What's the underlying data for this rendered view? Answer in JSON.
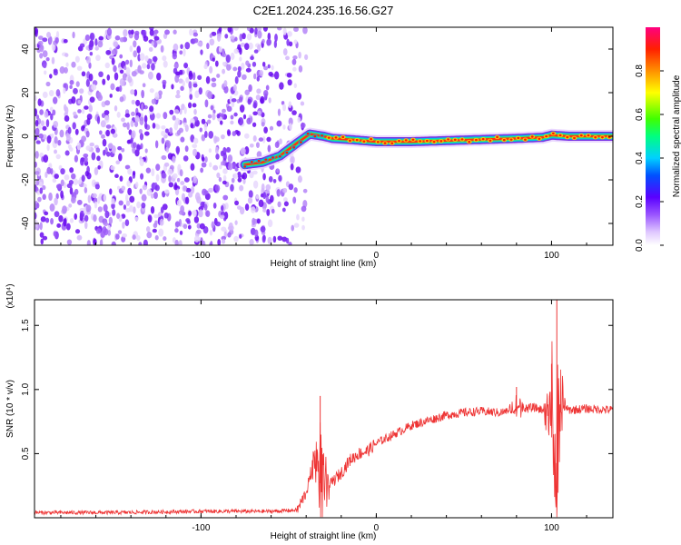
{
  "title": "C2E1.2024.235.16.56.G27",
  "chart_data": [
    {
      "type": "heatmap",
      "xlabel": "Height of straight line (km)",
      "ylabel": "Frequency (Hz)",
      "xlim": [
        -195,
        135
      ],
      "ylim": [
        -50,
        50
      ],
      "xticks": [
        -100,
        0,
        100
      ],
      "xtick_labels": [
        "-100",
        "0",
        "100"
      ],
      "yticks": [
        -40,
        -20,
        0,
        20,
        40
      ],
      "ytick_labels": [
        "-40",
        "-20",
        "0",
        "20",
        "40"
      ],
      "noise_region_x": [
        -195,
        -50
      ],
      "signal_track": {
        "x": [
          -75,
          -65,
          -55,
          -45,
          -38,
          -30,
          -25,
          -15,
          0,
          20,
          40,
          60,
          80,
          95,
          100,
          110,
          135
        ],
        "y": [
          -13,
          -12,
          -9,
          -3,
          1,
          0,
          -1,
          -1.5,
          -2.5,
          -2.5,
          -2,
          -1.5,
          -1,
          -0.5,
          0.5,
          0,
          0
        ]
      },
      "colorbar": {
        "label": "Normalized spectral amplitude",
        "range": [
          0,
          1
        ],
        "ticks": [
          0.0,
          0.2,
          0.4,
          0.6,
          0.8
        ],
        "tick_labels": [
          "0.0",
          "0.2",
          "0.4",
          "0.6",
          "0.8"
        ]
      }
    },
    {
      "type": "line",
      "xlabel": "Height of straight line (km)",
      "ylabel": "SNR (10 * v/v)",
      "scale_label": "(x10⁴)",
      "xlim": [
        -195,
        135
      ],
      "ylim": [
        0,
        1.7
      ],
      "xticks": [
        -100,
        0,
        100
      ],
      "xtick_labels": [
        "-100",
        "0",
        "100"
      ],
      "yticks": [
        0.5,
        1.0,
        1.5
      ],
      "ytick_labels": [
        "0.5",
        "1.0",
        "1.5"
      ],
      "series": [
        {
          "color": "#ee3333",
          "x": [
            -195,
            -150,
            -100,
            -60,
            -45,
            -40,
            -35,
            -30,
            -25,
            -20,
            -15,
            -10,
            -5,
            0,
            10,
            20,
            30,
            40,
            50,
            60,
            70,
            80,
            90,
            95,
            100,
            103,
            105,
            110,
            120,
            135
          ],
          "y": [
            0.04,
            0.04,
            0.05,
            0.05,
            0.06,
            0.2,
            0.45,
            0.15,
            0.28,
            0.35,
            0.45,
            0.5,
            0.52,
            0.58,
            0.65,
            0.72,
            0.76,
            0.8,
            0.82,
            0.83,
            0.82,
            0.84,
            0.86,
            0.84,
            0.7,
            0.2,
            0.86,
            0.84,
            0.85,
            0.84
          ]
        }
      ],
      "spikes": [
        {
          "x": -32,
          "y": 0.95
        },
        {
          "x": 80,
          "y": 1.02
        },
        {
          "x": 100,
          "y": 1.2
        },
        {
          "x": 103,
          "y": 1.7
        }
      ]
    }
  ]
}
